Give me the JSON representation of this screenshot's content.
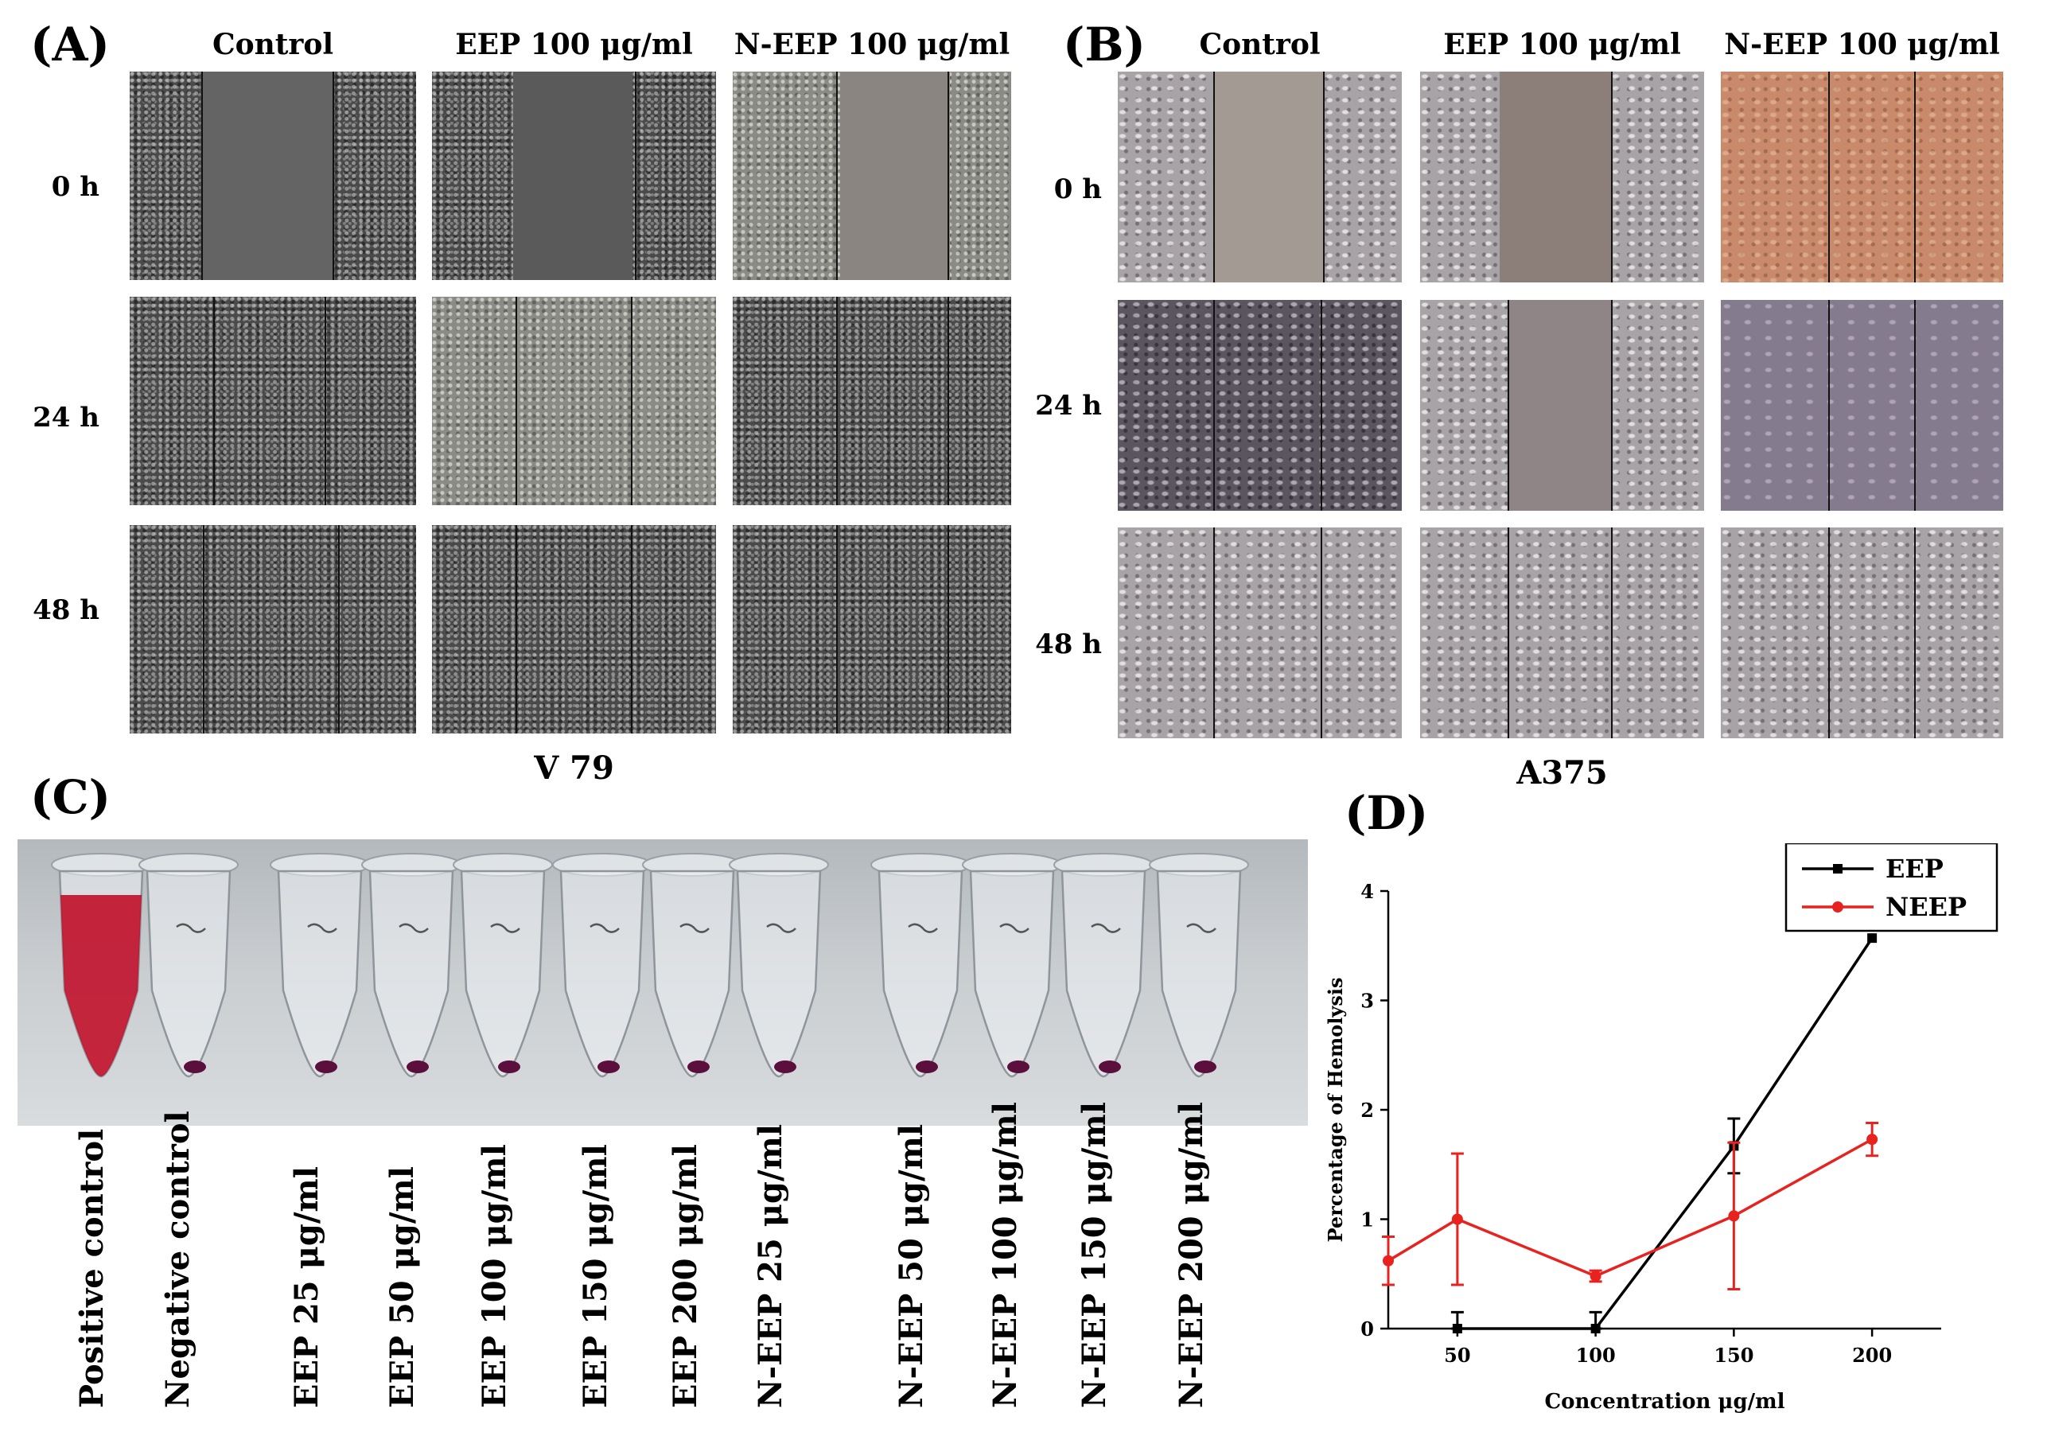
{
  "panel_a": {
    "letter": "(A)",
    "columns": [
      "Control",
      "EEP 100 μg/ml",
      "N-EEP 100 μg/ml"
    ],
    "rows": [
      "0 h",
      "24 h",
      "48 h"
    ],
    "caption": "V 79"
  },
  "panel_b": {
    "letter": "(B)",
    "columns": [
      "Control",
      "EEP 100 μg/ml",
      "N-EEP 100 μg/ml"
    ],
    "rows": [
      "0 h",
      "24 h",
      "48 h"
    ],
    "caption": "A375"
  },
  "panel_c": {
    "letter": "(C)",
    "tubes": [
      {
        "label": "Positive control",
        "contents": "red"
      },
      {
        "label": "Negative control",
        "contents": "pellet"
      },
      {
        "label": "EEP 25 μg/ml",
        "contents": "pellet"
      },
      {
        "label": "EEP 50 μg/ml",
        "contents": "pellet"
      },
      {
        "label": "EEP 100 μg/ml",
        "contents": "pellet"
      },
      {
        "label": "EEP 150 μg/ml",
        "contents": "pellet"
      },
      {
        "label": "EEP 200 μg/ml",
        "contents": "pellet"
      },
      {
        "label": "N-EEP 25 μg/ml",
        "contents": "pellet"
      },
      {
        "label": "N-EEP 50 μg/ml",
        "contents": "pellet"
      },
      {
        "label": "N-EEP 100 μg/ml",
        "contents": "pellet"
      },
      {
        "label": "N-EEP 150 μg/ml",
        "contents": "pellet"
      },
      {
        "label": "N-EEP 200 μg/ml",
        "contents": "pellet"
      }
    ],
    "colors": {
      "blood": "#c0102a",
      "pellet": "#5a0f3c"
    }
  },
  "panel_d": {
    "letter": "(D)",
    "chart_data": {
      "type": "line",
      "xlabel": "Concentration μg/ml",
      "ylabel": "Percentage of Hemolysis",
      "xlim": [
        25,
        225
      ],
      "ylim": [
        0,
        4
      ],
      "xticks": [
        50,
        100,
        150,
        200
      ],
      "yticks": [
        0,
        1,
        2,
        3,
        4
      ],
      "legend_position": "top-right",
      "series": [
        {
          "name": "EEP",
          "color": "#000000",
          "marker": "square",
          "x": [
            50,
            100,
            150,
            200
          ],
          "y": [
            0,
            0,
            1.67,
            3.57
          ],
          "err": [
            0.15,
            0.15,
            0.25,
            0
          ]
        },
        {
          "name": "NEEP",
          "color": "#e8231f",
          "marker": "circle",
          "x": [
            25,
            50,
            100,
            150,
            200
          ],
          "y": [
            0.62,
            1.0,
            0.48,
            1.03,
            1.73
          ],
          "err": [
            0.22,
            0.6,
            0.05,
            0.67,
            0.15
          ]
        }
      ]
    }
  }
}
